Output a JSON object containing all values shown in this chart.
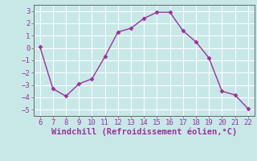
{
  "x": [
    6,
    7,
    8,
    9,
    10,
    11,
    12,
    13,
    14,
    15,
    16,
    17,
    18,
    19,
    20,
    21,
    22
  ],
  "y": [
    0.1,
    -3.3,
    -3.9,
    -2.9,
    -2.5,
    -0.7,
    1.3,
    1.6,
    2.4,
    2.9,
    2.9,
    1.4,
    0.5,
    -0.8,
    -3.5,
    -3.8,
    -4.9
  ],
  "xlim": [
    5.5,
    22.5
  ],
  "ylim": [
    -5.5,
    3.5
  ],
  "xticks": [
    6,
    7,
    8,
    9,
    10,
    11,
    12,
    13,
    14,
    15,
    16,
    17,
    18,
    19,
    20,
    21,
    22
  ],
  "yticks": [
    -5,
    -4,
    -3,
    -2,
    -1,
    0,
    1,
    2,
    3
  ],
  "xlabel": "Windchill (Refroidissement éolien,°C)",
  "line_color": "#993399",
  "marker": "D",
  "bg_color": "#c8e8e8",
  "grid_color": "#ffffff",
  "tick_label_fontsize": 6.5,
  "xlabel_fontsize": 7.5,
  "spine_color": "#666666"
}
